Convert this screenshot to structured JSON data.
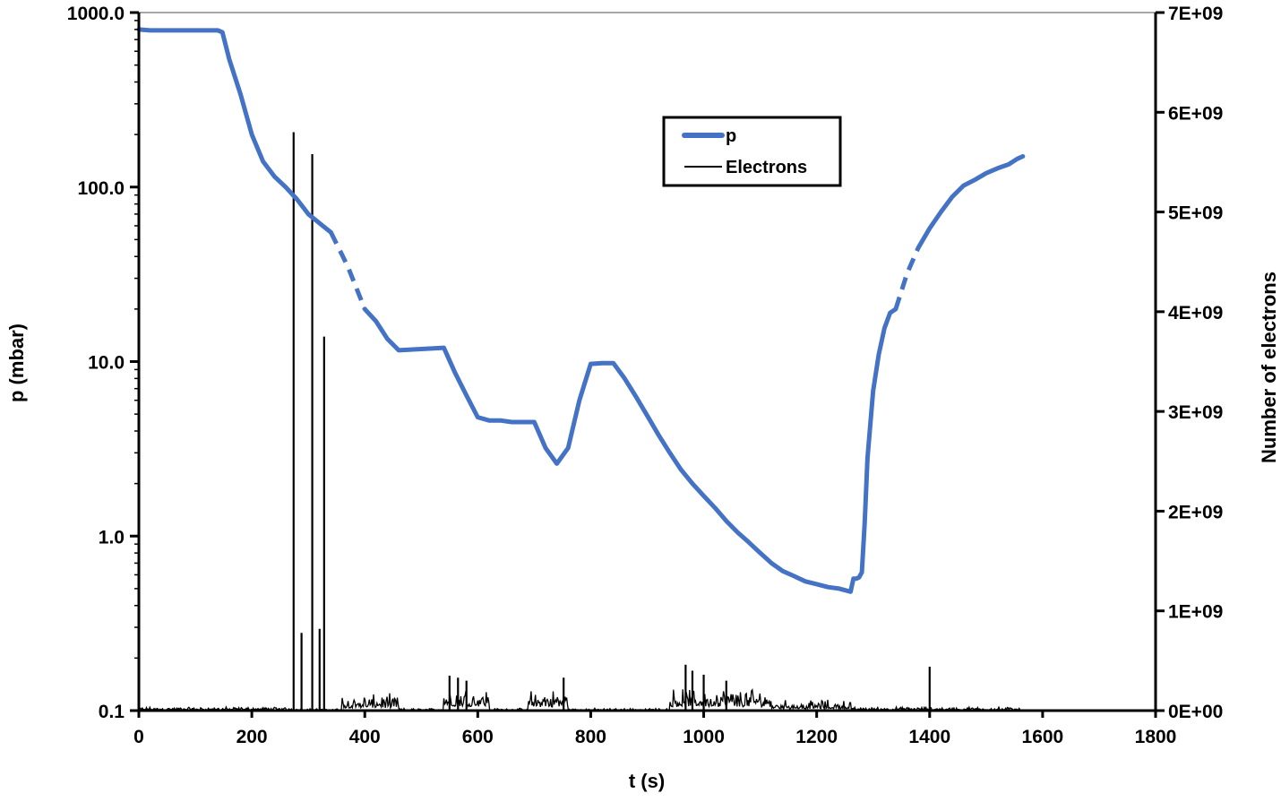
{
  "chart_data": {
    "type": "line",
    "title": "",
    "xlabel": "t (s)",
    "ylabel_left": "p (mbar)",
    "ylabel_right": "Number of electrons",
    "xlim": [
      0,
      1800
    ],
    "x_ticks": [
      0,
      200,
      400,
      600,
      800,
      1000,
      1200,
      1400,
      1600,
      1800
    ],
    "y_left_scale": "log",
    "y_left_lim": [
      0.1,
      1000
    ],
    "y_left_ticks": [
      {
        "value": 0.1,
        "label": "0.1"
      },
      {
        "value": 1,
        "label": "1.0"
      },
      {
        "value": 10,
        "label": "10.0"
      },
      {
        "value": 100,
        "label": "100.0"
      },
      {
        "value": 1000,
        "label": "1000.0"
      }
    ],
    "y_right_lim": [
      0,
      7000000000
    ],
    "y_right_ticks": [
      {
        "value": 0,
        "label": "0E+00"
      },
      {
        "value": 1000000000,
        "label": "1E+09"
      },
      {
        "value": 2000000000,
        "label": "2E+09"
      },
      {
        "value": 3000000000,
        "label": "3E+09"
      },
      {
        "value": 4000000000,
        "label": "4E+09"
      },
      {
        "value": 5000000000,
        "label": "5E+09"
      },
      {
        "value": 6000000000,
        "label": "6E+09"
      },
      {
        "value": 7000000000,
        "label": "7E+09"
      }
    ],
    "grid": false,
    "legend_position": "top-center",
    "series": [
      {
        "name": "p",
        "axis": "left",
        "color": "#4472C4",
        "segments": [
          {
            "style": "solid",
            "x": [
              0,
              20,
              60,
              100,
              140,
              148,
              160,
              180,
              200,
              220,
              240,
              260,
              280,
              300,
              320,
              340
            ],
            "y": [
              800,
              790,
              790,
              790,
              790,
              770,
              540,
              340,
              200,
              140,
              115,
              100,
              85,
              70,
              62,
              55
            ]
          },
          {
            "style": "dashed",
            "x": [
              340,
              370,
              400
            ],
            "y": [
              55,
              35,
              20
            ]
          },
          {
            "style": "solid",
            "x": [
              400,
              420,
              440,
              460,
              500,
              540,
              560,
              580,
              600,
              620,
              640,
              660,
              680,
              700,
              720,
              740,
              760,
              780,
              800,
              820,
              840,
              860,
              880,
              900,
              920,
              940,
              960,
              980,
              1000,
              1020,
              1040,
              1060,
              1080,
              1100,
              1120,
              1140,
              1160,
              1180,
              1200,
              1220,
              1240,
              1260,
              1265,
              1270,
              1275,
              1280,
              1285,
              1290,
              1300,
              1310,
              1320,
              1330,
              1340
            ],
            "y": [
              20,
              17,
              13.5,
              11.6,
              11.8,
              12,
              8.6,
              6.4,
              4.8,
              4.6,
              4.6,
              4.5,
              4.5,
              4.5,
              3.2,
              2.6,
              3.2,
              6.0,
              9.7,
              9.8,
              9.8,
              8.0,
              6.3,
              4.9,
              3.8,
              3.0,
              2.4,
              2.0,
              1.7,
              1.45,
              1.22,
              1.05,
              0.92,
              0.8,
              0.7,
              0.63,
              0.59,
              0.55,
              0.53,
              0.51,
              0.5,
              0.48,
              0.57,
              0.57,
              0.58,
              0.62,
              1.2,
              2.8,
              6.8,
              11,
              15.5,
              19,
              20
            ]
          },
          {
            "style": "dashed",
            "x": [
              1340,
              1360,
              1380
            ],
            "y": [
              20,
              32,
              45
            ]
          },
          {
            "style": "solid",
            "x": [
              1380,
              1400,
              1420,
              1440,
              1460,
              1480,
              1500,
              1520,
              1540,
              1555,
              1565
            ],
            "y": [
              45,
              58,
              72,
              88,
              102,
              110,
              120,
              128,
              135,
              145,
              150
            ]
          }
        ]
      },
      {
        "name": "Electrons",
        "axis": "right",
        "color": "#000000",
        "spikes": [
          {
            "x": 274,
            "value": 5800000000
          },
          {
            "x": 288,
            "value": 780000000
          },
          {
            "x": 307,
            "value": 5580000000
          },
          {
            "x": 320,
            "value": 820000000
          },
          {
            "x": 328,
            "value": 3750000000
          },
          {
            "x": 550,
            "value": 350000000
          },
          {
            "x": 565,
            "value": 330000000
          },
          {
            "x": 580,
            "value": 300000000
          },
          {
            "x": 752,
            "value": 330000000
          },
          {
            "x": 968,
            "value": 460000000
          },
          {
            "x": 980,
            "value": 400000000
          },
          {
            "x": 1000,
            "value": 360000000
          },
          {
            "x": 1040,
            "value": 300000000
          },
          {
            "x": 1400,
            "value": 440000000
          }
        ],
        "noise_bands": [
          {
            "x": [
              0,
              270
            ],
            "value": 40000000
          },
          {
            "x": [
              360,
              460
            ],
            "value": 180000000
          },
          {
            "x": [
              540,
              620
            ],
            "value": 280000000
          },
          {
            "x": [
              690,
              760
            ],
            "value": 240000000
          },
          {
            "x": [
              940,
              1120
            ],
            "value": 250000000
          },
          {
            "x": [
              1120,
              1260
            ],
            "value": 120000000
          },
          {
            "x": [
              1260,
              1560
            ],
            "value": 40000000
          }
        ]
      }
    ]
  }
}
